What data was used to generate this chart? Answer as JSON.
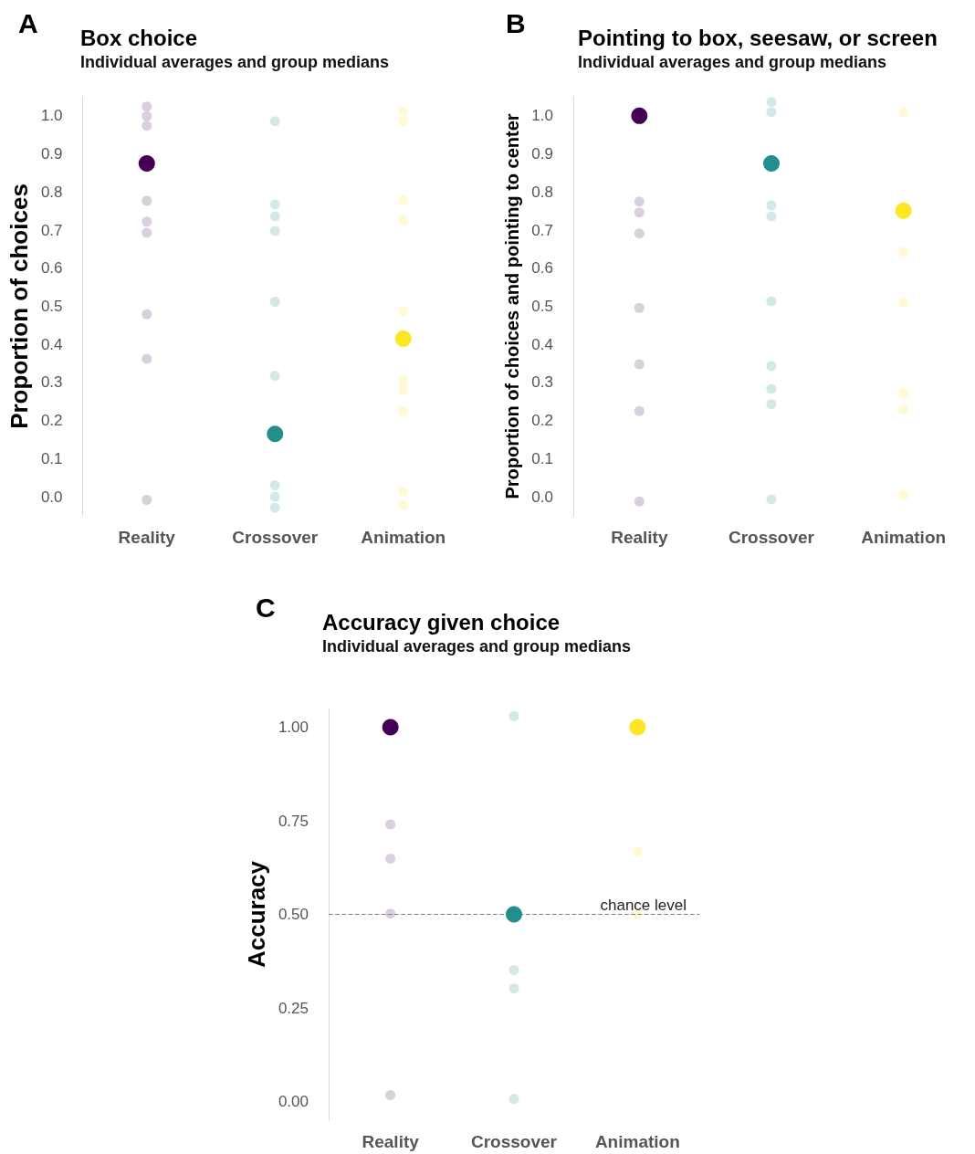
{
  "chart_data": [
    {
      "type": "scatter",
      "title": "Box choice",
      "subtitle": "Individual averages and group medians",
      "ylabel": "Proportion of choices",
      "annotations": [
        "A"
      ],
      "grid": false,
      "marker": "circle",
      "categories": [
        "Reality",
        "Crossover",
        "Animation"
      ],
      "ylim": [
        -0.05,
        1.05
      ],
      "yticks": [
        {
          "value": 0,
          "label": "0.0"
        },
        0.1,
        0.2,
        0.3,
        0.4,
        0.5,
        0.6,
        0.7,
        0.8,
        0.9,
        {
          "value": 1,
          "label": "1.0"
        }
      ],
      "series": [
        {
          "color": "#dacfdd",
          "x": [
            "Reality",
            "Reality",
            "Reality",
            "Reality",
            "Reality",
            "Reality",
            "Reality",
            "Reality",
            "Reality"
          ],
          "values": [
            1.024,
            0.999,
            0.974,
            0.777,
            0.722,
            0.693,
            0.479,
            0.362,
            -0.008
          ]
        },
        {
          "color": "#d3e9e8",
          "x": [
            "Crossover",
            "Crossover",
            "Crossover",
            "Crossover",
            "Crossover",
            "Crossover",
            "Crossover",
            "Crossover",
            "Crossover"
          ],
          "values": [
            0.986,
            0.767,
            0.736,
            0.698,
            0.512,
            0.318,
            0.03,
            0.0,
            -0.029
          ]
        },
        {
          "color": "#fffad3",
          "x": [
            "Animation",
            "Animation",
            "Animation",
            "Animation",
            "Animation",
            "Animation",
            "Animation",
            "Animation",
            "Animation",
            "Animation"
          ],
          "values": [
            1.012,
            0.986,
            0.779,
            0.725,
            0.486,
            0.305,
            0.281,
            0.225,
            0.014,
            -0.022
          ]
        },
        {
          "color": "#440154",
          "x": [
            "Reality"
          ],
          "values": [
            0.875
          ]
        },
        {
          "color": "#21908c",
          "x": [
            "Crossover"
          ],
          "values": [
            0.165
          ]
        },
        {
          "color": "#fde725",
          "x": [
            "Animation"
          ],
          "values": [
            0.415
          ]
        }
      ]
    },
    {
      "type": "scatter",
      "title": "Pointing to box, seesaw, or screen",
      "subtitle": "Individual averages and group medians",
      "ylabel": "Proportion of choices and pointing to center",
      "annotations": [
        "B"
      ],
      "grid": false,
      "marker": "circle",
      "categories": [
        "Reality",
        "Crossover",
        "Animation"
      ],
      "ylim": [
        -0.05,
        1.05
      ],
      "yticks": [
        {
          "value": 0,
          "label": "0.0"
        },
        0.1,
        0.2,
        0.3,
        0.4,
        0.5,
        0.6,
        0.7,
        0.8,
        0.9,
        {
          "value": 1,
          "label": "1.0"
        }
      ],
      "series": [
        {
          "color": "#dacfdd",
          "x": [
            "Reality",
            "Reality",
            "Reality",
            "Reality",
            "Reality",
            "Reality",
            "Reality"
          ],
          "values": [
            0.775,
            0.746,
            0.691,
            0.496,
            0.348,
            0.225,
            -0.012
          ]
        },
        {
          "color": "#d3e9e8",
          "x": [
            "Crossover",
            "Crossover",
            "Crossover",
            "Crossover",
            "Crossover",
            "Crossover",
            "Crossover",
            "Crossover",
            "Crossover"
          ],
          "values": [
            1.036,
            1.01,
            0.765,
            0.736,
            0.513,
            0.343,
            0.283,
            0.243,
            -0.007
          ]
        },
        {
          "color": "#fffad3",
          "x": [
            "Animation",
            "Animation",
            "Animation",
            "Animation",
            "Animation",
            "Animation"
          ],
          "values": [
            1.01,
            0.643,
            0.511,
            0.273,
            0.229,
            0.005
          ]
        },
        {
          "color": "#440154",
          "x": [
            "Reality"
          ],
          "values": [
            1.0
          ]
        },
        {
          "color": "#21908c",
          "x": [
            "Crossover"
          ],
          "values": [
            0.875
          ]
        },
        {
          "color": "#fde725",
          "x": [
            "Animation"
          ],
          "values": [
            0.751
          ]
        }
      ]
    },
    {
      "type": "scatter",
      "title": "Accuracy given choice",
      "subtitle": "Individual averages and group medians",
      "ylabel": "Accuracy",
      "annotations": [
        "C"
      ],
      "grid": false,
      "marker": "circle",
      "categories": [
        "Reality",
        "Crossover",
        "Animation"
      ],
      "ylim": [
        -0.05,
        1.05
      ],
      "yticks": [
        {
          "value": 0,
          "label": "0.00"
        },
        0.25,
        {
          "value": 0.5,
          "label": "0.50"
        },
        0.75,
        {
          "value": 1,
          "label": "1.00"
        }
      ],
      "ref_lines": [
        {
          "axis": "y",
          "value": 0.5,
          "label": "chance level",
          "color": "#7f7f7f",
          "line_style": "dashed"
        }
      ],
      "series": [
        {
          "color": "#dacfdd",
          "x": [
            "Reality",
            "Reality",
            "Reality",
            "Reality"
          ],
          "values": [
            0.74,
            0.649,
            0.502,
            0.017
          ]
        },
        {
          "color": "#d3e9e8",
          "x": [
            "Crossover",
            "Crossover",
            "Crossover",
            "Crossover"
          ],
          "values": [
            1.029,
            0.351,
            0.302,
            0.007
          ]
        },
        {
          "color": "#fffad3",
          "x": [
            "Animation",
            "Animation"
          ],
          "values": [
            0.668,
            0.502
          ]
        },
        {
          "color": "#440154",
          "x": [
            "Reality"
          ],
          "values": [
            1.0
          ]
        },
        {
          "color": "#21908c",
          "x": [
            "Crossover"
          ],
          "values": [
            0.5
          ]
        },
        {
          "color": "#fde725",
          "x": [
            "Animation"
          ],
          "values": [
            1.0
          ]
        }
      ]
    }
  ]
}
